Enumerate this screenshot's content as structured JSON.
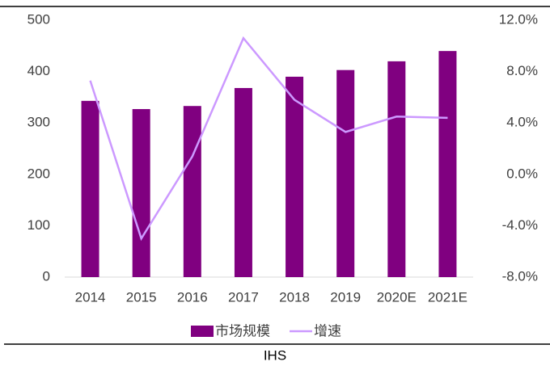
{
  "chart_data": {
    "type": "bar_line",
    "categories": [
      "2014",
      "2015",
      "2016",
      "2017",
      "2018",
      "2019",
      "2020E",
      "2021E"
    ],
    "series": [
      {
        "name": "市场规模",
        "type": "bar",
        "color": "#800080",
        "values": [
          343,
          327,
          333,
          368,
          390,
          403,
          420,
          440
        ]
      },
      {
        "name": "增速",
        "type": "line",
        "axis": "y2",
        "color": "#cc99ff",
        "values": [
          7.3,
          -5.0,
          1.4,
          10.6,
          5.8,
          3.3,
          4.5,
          4.4
        ]
      }
    ],
    "ylim": [
      0,
      500
    ],
    "yticks": [
      0,
      100,
      200,
      300,
      400,
      500
    ],
    "y2lim": [
      -8,
      12
    ],
    "y2ticks": [
      {
        "value": -8,
        "label": "-8.0%"
      },
      {
        "value": -4,
        "label": "-4.0%"
      },
      {
        "value": 0,
        "label": "0.0%"
      },
      {
        "value": 4,
        "label": "4.0%"
      },
      {
        "value": 8,
        "label": "8.0%"
      },
      {
        "value": 12,
        "label": "12.0%"
      }
    ],
    "legend": "bottom",
    "source": "IHS"
  }
}
